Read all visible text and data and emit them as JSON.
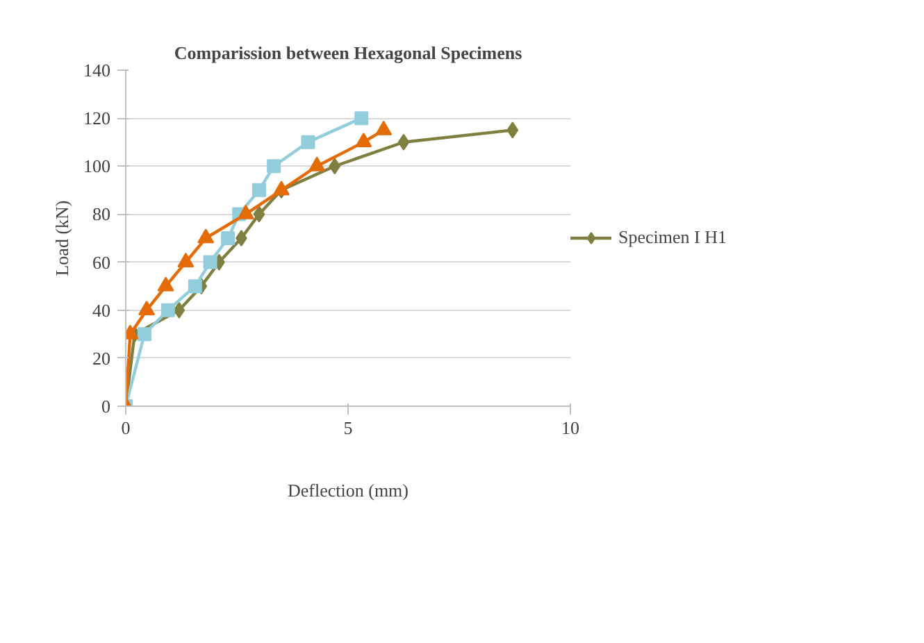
{
  "chart_data": {
    "type": "line",
    "title": "Comparission between Hexagonal Specimens",
    "xlabel": "Deflection (mm)",
    "ylabel": "Load (kN)",
    "xlim": [
      0,
      10
    ],
    "xticks": [
      0,
      5,
      10
    ],
    "ylim": [
      0,
      140
    ],
    "yticks": [
      0,
      20,
      40,
      60,
      80,
      100,
      120,
      140
    ],
    "grid": "y",
    "legend": "right",
    "line_style": "solid",
    "series": [
      {
        "name": "Specimen I H1",
        "color": "#7f7f3f",
        "marker": "diamond",
        "x": [
          0,
          0.2,
          1.2,
          1.7,
          2.1,
          2.6,
          3.0,
          3.5,
          4.7,
          6.25,
          8.7
        ],
        "values": [
          0,
          30,
          40,
          50,
          60,
          70,
          80,
          90,
          100,
          110,
          115
        ]
      },
      {
        "color": "#92cddc",
        "marker": "square",
        "x": [
          0,
          0.42,
          0.95,
          1.56,
          1.9,
          2.3,
          2.55,
          3.0,
          3.33,
          4.1,
          5.3
        ],
        "values": [
          0,
          30,
          40,
          50,
          60,
          70,
          80,
          90,
          100,
          110,
          120
        ]
      },
      {
        "color": "#e36c09",
        "marker": "triangle",
        "x": [
          0,
          0.1,
          0.47,
          0.9,
          1.35,
          1.8,
          2.7,
          3.5,
          4.3,
          5.35,
          5.8
        ],
        "values": [
          0,
          30,
          40,
          50,
          60,
          70,
          80,
          90,
          100,
          110,
          115
        ]
      }
    ]
  }
}
